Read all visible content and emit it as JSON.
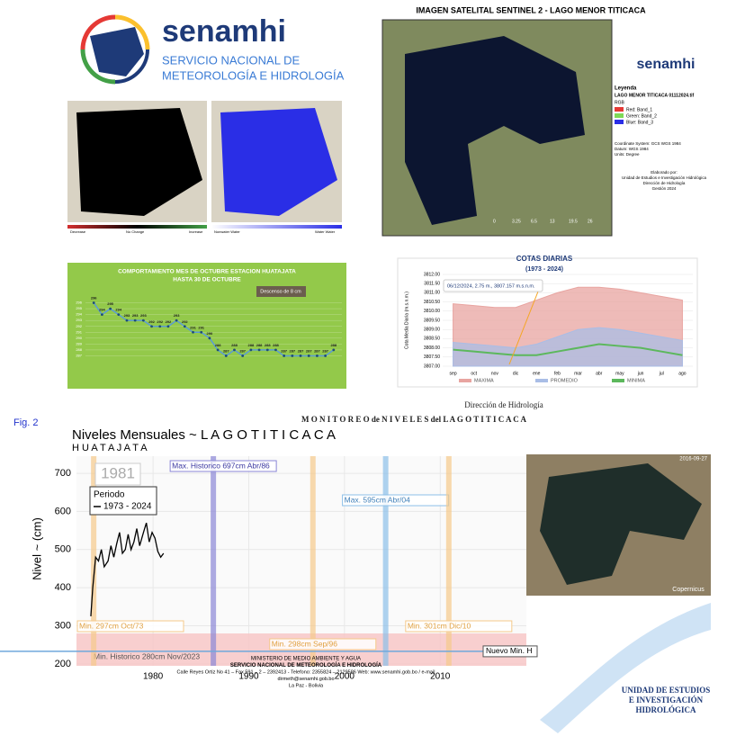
{
  "header": {
    "logo_name": "senamhi",
    "logo_subtitle_1": "SERVICIO NACIONAL DE",
    "logo_subtitle_2": "METEOROLOGÍA E HIDROLOGÍA"
  },
  "change_maps": {
    "legend_left": [
      "Decrease",
      "No Change",
      "Increase"
    ],
    "legend_right": [
      "Nonwater Water",
      "Water Water"
    ]
  },
  "satellite": {
    "title": "IMAGEN SATELITAL SENTINEL 2 - LAGO MENOR TITICACA",
    "brand": "senamhi",
    "legend_title": "Leyenda",
    "legend_file": "LAGO MENOR TITICACA 01112024.tif",
    "legend_rgb": "RGB",
    "bands": [
      "Red:  Band_1",
      "Green: Band_2",
      "Blue:  Band_3"
    ],
    "notes": [
      "Coordinate System: GCS WGS 1984",
      "Datum: WGS 1984",
      "Units: Degree",
      "Elaborado por:",
      "Unidad de Estudios e Investigación Hidrológica",
      "Dirección de Hidrología",
      "Gestión 2024"
    ],
    "scale": [
      "0",
      "3.25",
      "6.5",
      "13",
      "19.5",
      "26"
    ]
  },
  "chart_data": [
    {
      "type": "line",
      "title": "COMPORTAMIENTO MES DE OCTUBRE ESTACION HUATAJATA",
      "subtitle": "HASTA 30 DE OCTUBRE",
      "annotation": "Descenso de 8 cm",
      "x": [
        1,
        2,
        3,
        4,
        5,
        6,
        7,
        8,
        9,
        10,
        11,
        12,
        13,
        14,
        15,
        16,
        17,
        18,
        19,
        20,
        21,
        22,
        23,
        24,
        25,
        26,
        27,
        28,
        29,
        30
      ],
      "values": [
        296,
        294,
        295,
        294,
        293,
        293,
        293,
        292,
        292,
        292,
        293,
        292,
        291,
        291,
        290,
        288,
        287,
        288,
        287,
        288,
        288,
        288,
        288,
        287,
        287,
        287,
        287,
        287,
        287,
        288
      ],
      "color": "#5b9bd5",
      "xlim": [
        0,
        31
      ],
      "ylim": [
        286,
        297
      ],
      "yticks": [
        287,
        288,
        289,
        290,
        291,
        292,
        293,
        294,
        295,
        296
      ],
      "grid": true
    },
    {
      "type": "area",
      "title": "COTAS DIARIAS",
      "subtitle": "(1973 - 2024)",
      "annotation": "06/12/2024, 2.75 m., 3807.157 m.s.n.m.",
      "y_label": "Cota Media Diaria (m.s.n.m.)",
      "categories": [
        "sep",
        "oct",
        "nov",
        "dic",
        "ene",
        "feb",
        "mar",
        "abr",
        "may",
        "jun",
        "jul",
        "ago"
      ],
      "series": [
        {
          "name": "MAXIMA",
          "color": "#e8a4a0",
          "values": [
            3810.4,
            3810.3,
            3810.2,
            3810.2,
            3810.6,
            3811.0,
            3811.3,
            3811.3,
            3811.2,
            3811.0,
            3810.8,
            3810.6
          ]
        },
        {
          "name": "PROMEDIO",
          "color": "#a9bde6",
          "values": [
            3808.3,
            3808.2,
            3808.1,
            3808.0,
            3808.2,
            3808.6,
            3809.0,
            3809.1,
            3809.0,
            3808.8,
            3808.6,
            3808.4
          ]
        },
        {
          "name": "MINIMA",
          "color": "#5cb85c",
          "values": [
            3807.9,
            3807.8,
            3807.7,
            3807.6,
            3807.6,
            3807.8,
            3808.0,
            3808.2,
            3808.1,
            3808.0,
            3807.8,
            3807.6
          ]
        }
      ],
      "ylim": [
        3807,
        3812
      ],
      "yticks": [
        {
          "value": 3807,
          "label": "3807.00"
        },
        {
          "value": 3807.5,
          "label": "3807.50"
        },
        {
          "value": 3808,
          "label": "3808.00"
        },
        {
          "value": 3808.5,
          "label": "3808.50"
        },
        {
          "value": 3809,
          "label": "3809.00"
        },
        {
          "value": 3809.5,
          "label": "3809.50"
        },
        {
          "value": 3810,
          "label": "3810.00"
        },
        {
          "value": 3810.5,
          "label": "3810.50"
        },
        {
          "value": 3811,
          "label": "3811.00"
        },
        {
          "value": 3811.5,
          "label": "3811.50"
        },
        {
          "value": 3812,
          "label": "3812.00"
        }
      ],
      "grid": true
    },
    {
      "type": "line",
      "title": "Niveles Mensuales ~ L A G O   T I T I C A C A",
      "subtitle": "H U A T A J A T A",
      "y_label": "Nivel ~ (cm)",
      "annotation": "1981",
      "legend_title": "Periodo",
      "x": [
        1973.5,
        1973.7,
        1974.0,
        1974.3,
        1974.6,
        1974.9,
        1975.3,
        1975.6,
        1975.9,
        1976.2,
        1976.5,
        1976.8,
        1977.1,
        1977.4,
        1977.7,
        1978.0,
        1978.3,
        1978.6,
        1979.0,
        1979.3,
        1979.6,
        1979.9,
        1980.2,
        1980.5,
        1980.8,
        1981.1
      ],
      "series": [
        {
          "name": "1973 - 2024",
          "color": "#000000",
          "values": [
            325,
            400,
            480,
            470,
            500,
            455,
            470,
            510,
            480,
            515,
            545,
            490,
            500,
            540,
            500,
            520,
            555,
            510,
            545,
            570,
            520,
            545,
            530,
            495,
            480,
            490
          ]
        }
      ],
      "markers": [
        {
          "x": 1973.8,
          "label": "Min. 297cm Oct/73",
          "color": "#f5c98a"
        },
        {
          "x": 1986.3,
          "label": "Max. Historico 697cm Abr/86",
          "color": "#8a86d6"
        },
        {
          "x": 1996.7,
          "label": "Min. 298cm Sep/96",
          "color": "#f5c98a"
        },
        {
          "x": 2004.3,
          "label": "Max. 595cm Abr/04",
          "color": "#8cbfe8"
        },
        {
          "x": 2010.9,
          "label": "Min. 301cm Dic/10",
          "color": "#f5c98a"
        }
      ],
      "min_band": {
        "y": 280,
        "label": "Min. Historico 280cm Nov/2023",
        "color": "#f8c4c4"
      },
      "reference_line": {
        "y": 233,
        "label": "Nuevo Min. H",
        "color": "#6fa8dc"
      },
      "xlim": [
        1972,
        2019
      ],
      "xticks": [
        1980,
        1990,
        2000,
        2010
      ],
      "ylim": [
        195,
        745
      ],
      "yticks": [
        200,
        300,
        400,
        500,
        600,
        700
      ],
      "grid": true
    }
  ],
  "direccion": {
    "line1": "Dirección de Hidrología",
    "line2": "M O N I T O R E O  de  N I V E L E S  del  L A G O  T I T I C A C A"
  },
  "fig_label": "Fig. 2",
  "footer": [
    "MINISTERIO DE MEDIO AMBIENTE Y AGUA",
    "SERVICIO NACIONAL DE METEOROLOGÍA E HIDROLOGÍA",
    "Calle Reyes Ortiz No 41 – Fax 591 – 2 – 2392413 - Telefono: 2355824 – 2129586 Web: www.senamhi.gob.bo / e-mail",
    "dirmeth@senamhi.gob.bo",
    "La Paz - Bolivia"
  ],
  "photo": {
    "date": "2016-09-27",
    "credit": "Copernicus"
  },
  "unit": [
    "UNIDAD DE ESTUDIOS",
    "E INVESTIGACIÓN",
    "HIDROLÓGICA"
  ]
}
